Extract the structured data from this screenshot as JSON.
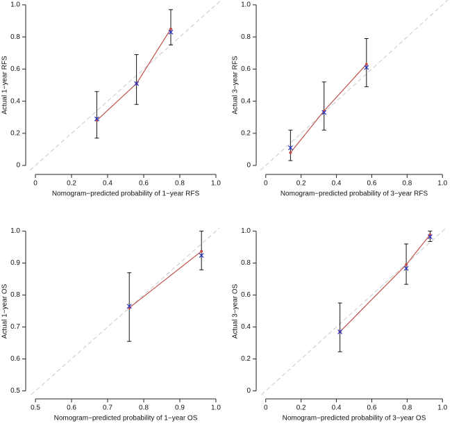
{
  "chart_data": [
    {
      "type": "calibration",
      "xlabel": "Nomogram−predicted probability of 1−year RFS",
      "ylabel": "Actual 1−year RFS",
      "x": [
        0.34,
        0.56,
        0.75
      ],
      "series": [
        {
          "color": "#c0504d",
          "values": [
            0.28,
            0.51,
            0.85
          ]
        },
        {
          "color": "#1f2fc8",
          "values": [
            0.29,
            0.51,
            0.83
          ]
        }
      ],
      "error_low": [
        0.17,
        0.38,
        0.75
      ],
      "error_high": [
        0.46,
        0.69,
        0.97
      ],
      "xlim": [
        -0.054,
        1.054
      ],
      "ylim": [
        -0.03,
        1.03
      ],
      "xticks": [
        0,
        0.2,
        0.4,
        0.6,
        0.8,
        {
          "value": 1,
          "label": "1.0"
        }
      ],
      "yticks": [
        0,
        0.2,
        0.4,
        0.6,
        0.8,
        {
          "value": 1,
          "label": "1.0"
        }
      ]
    },
    {
      "type": "calibration",
      "xlabel": "Nomogram−predicted probability of 3−year RFS",
      "ylabel": "Actual 3−year RFS",
      "x": [
        0.14,
        0.33,
        0.57
      ],
      "series": [
        {
          "color": "#c0504d",
          "values": [
            0.08,
            0.34,
            0.63
          ]
        },
        {
          "color": "#1f2fc8",
          "values": [
            0.11,
            0.33,
            0.61
          ]
        }
      ],
      "error_low": [
        0.03,
        0.22,
        0.49
      ],
      "error_high": [
        0.22,
        0.52,
        0.79
      ],
      "xlim": [
        -0.054,
        1.054
      ],
      "ylim": [
        -0.03,
        1.03
      ],
      "xticks": [
        0,
        0.2,
        0.4,
        0.6,
        0.8,
        {
          "value": 1,
          "label": "1.0"
        }
      ],
      "yticks": [
        0,
        0.2,
        0.4,
        0.6,
        0.8,
        {
          "value": 1,
          "label": "1.0"
        }
      ]
    },
    {
      "type": "calibration",
      "xlabel": "Nomogram−predicted probability of 1−year OS",
      "ylabel": "Actual 1−year OS",
      "x": [
        0.76,
        0.96
      ],
      "series": [
        {
          "color": "#c0504d",
          "values": [
            0.76,
            0.937
          ]
        },
        {
          "color": "#1f2fc8",
          "values": [
            0.765,
            0.924
          ]
        }
      ],
      "error_low": [
        0.655,
        0.879
      ],
      "error_high": [
        0.87,
        1.0
      ],
      "xlim": [
        0.473,
        1.027
      ],
      "ylim": [
        0.488,
        1.01
      ],
      "xticks": [
        0.5,
        0.6,
        0.7,
        0.8,
        0.9,
        {
          "value": 1,
          "label": "1.0"
        }
      ],
      "yticks": [
        0.5,
        0.6,
        0.7,
        0.8,
        0.9,
        {
          "value": 1,
          "label": "1.0"
        }
      ]
    },
    {
      "type": "calibration",
      "xlabel": "Nomogram−predicted probability of 3−year OS",
      "ylabel": "Actual 3−year OS",
      "x": [
        0.42,
        0.795,
        0.93
      ],
      "series": [
        {
          "color": "#c0504d",
          "values": [
            0.37,
            0.79,
            0.978
          ]
        },
        {
          "color": "#1f2fc8",
          "values": [
            0.37,
            0.767,
            0.965
          ]
        }
      ],
      "error_low": [
        0.245,
        0.667,
        0.935
      ],
      "error_high": [
        0.55,
        0.92,
        1.0
      ],
      "xlim": [
        -0.054,
        1.054
      ],
      "ylim": [
        -0.024,
        1.02
      ],
      "xticks": [
        0,
        0.2,
        0.4,
        0.6,
        0.8,
        {
          "value": 1,
          "label": "1.0"
        }
      ],
      "yticks": [
        0,
        0.2,
        0.4,
        0.6,
        0.8,
        {
          "value": 1,
          "label": "1.0"
        }
      ]
    }
  ]
}
